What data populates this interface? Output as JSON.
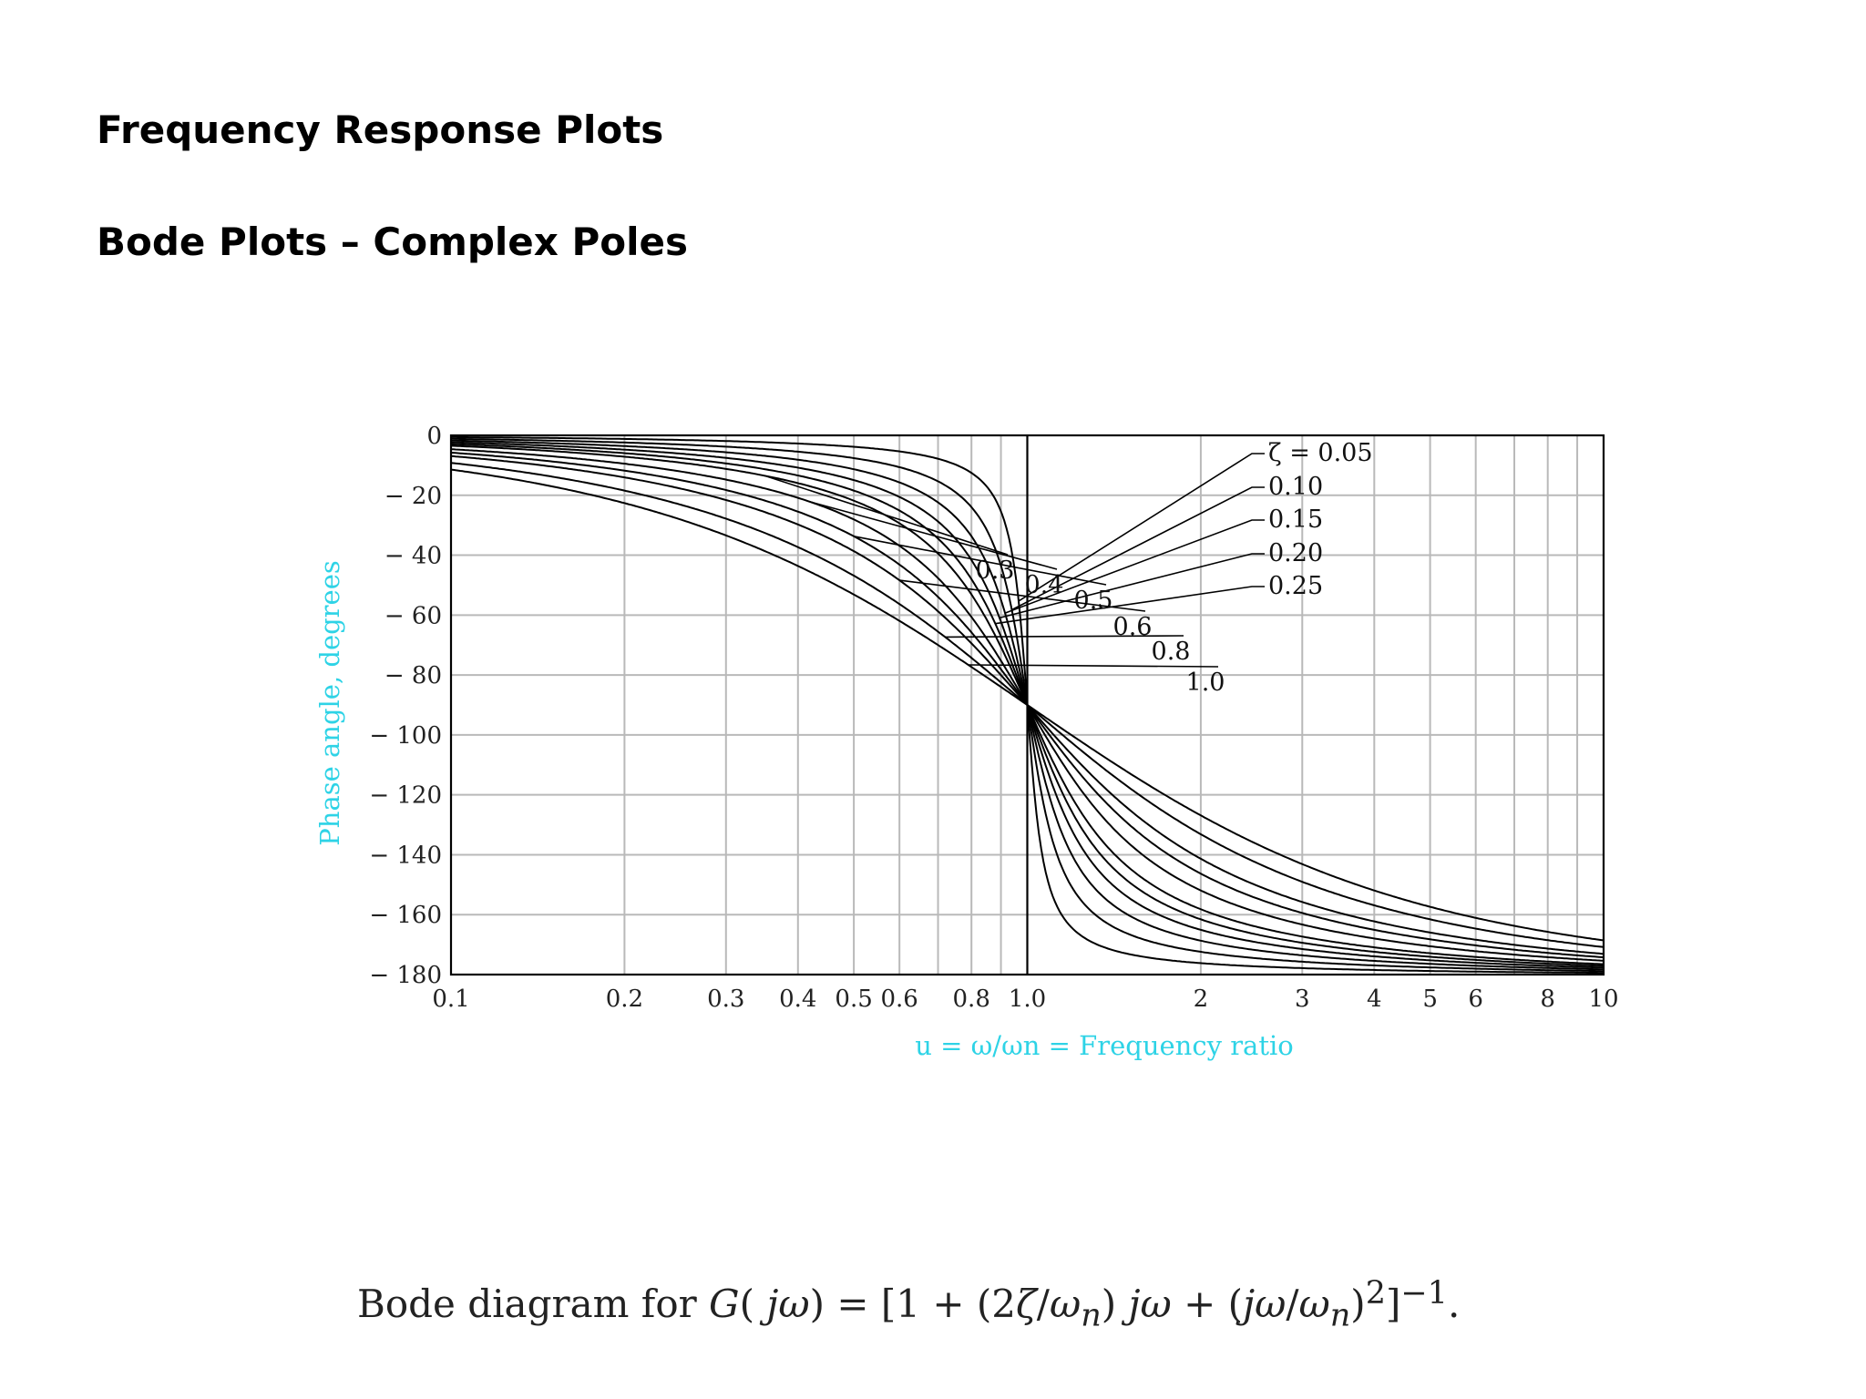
{
  "headings": {
    "title": "Frequency Response Plots",
    "subtitle": "Bode Plots – Complex Poles"
  },
  "colors": {
    "axis_label": "#2ed3e6",
    "grid": "#b9b9b9",
    "curves": "#000000"
  },
  "chart_data": {
    "type": "line",
    "x_scale": "log",
    "xlim": [
      0.1,
      10
    ],
    "ylim": [
      -180,
      0
    ],
    "grid": true,
    "xlabel": "u = ω/ωn = Frequency ratio",
    "ylabel": "Phase angle, degrees",
    "x_ticks": [
      {
        "value": 0.1,
        "label": "0.1"
      },
      {
        "value": 0.2,
        "label": "0.2"
      },
      {
        "value": 0.3,
        "label": "0.3"
      },
      {
        "value": 0.4,
        "label": "0.4"
      },
      {
        "value": 0.5,
        "label": "0.5"
      },
      {
        "value": 0.6,
        "label": "0.6"
      },
      {
        "value": 0.8,
        "label": "0.8"
      },
      {
        "value": 1.0,
        "label": "1.0"
      },
      {
        "value": 2,
        "label": "2"
      },
      {
        "value": 3,
        "label": "3"
      },
      {
        "value": 4,
        "label": "4"
      },
      {
        "value": 5,
        "label": "5"
      },
      {
        "value": 6,
        "label": "6"
      },
      {
        "value": 8,
        "label": "8"
      },
      {
        "value": 10,
        "label": "10"
      }
    ],
    "x_gridlines": [
      0.1,
      0.2,
      0.3,
      0.4,
      0.5,
      0.6,
      0.7,
      0.8,
      0.9,
      1,
      2,
      3,
      4,
      5,
      6,
      7,
      8,
      9,
      10
    ],
    "y_ticks": [
      {
        "value": 0,
        "label": "0"
      },
      {
        "value": -20,
        "label": "− 20"
      },
      {
        "value": -40,
        "label": "− 40"
      },
      {
        "value": -60,
        "label": "− 60"
      },
      {
        "value": -80,
        "label": "− 80"
      },
      {
        "value": -100,
        "label": "− 100"
      },
      {
        "value": -120,
        "label": "− 120"
      },
      {
        "value": -140,
        "label": "− 140"
      },
      {
        "value": -160,
        "label": "− 160"
      },
      {
        "value": -180,
        "label": "− 180"
      }
    ],
    "series": [
      {
        "zeta": 0.05,
        "label": "ζ = 0.05"
      },
      {
        "zeta": 0.1,
        "label": "0.10"
      },
      {
        "zeta": 0.15,
        "label": "0.15"
      },
      {
        "zeta": 0.2,
        "label": "0.20"
      },
      {
        "zeta": 0.25,
        "label": "0.25"
      },
      {
        "zeta": 0.3,
        "label": "0.3"
      },
      {
        "zeta": 0.4,
        "label": "0.4"
      },
      {
        "zeta": 0.5,
        "label": "0.5"
      },
      {
        "zeta": 0.6,
        "label": "0.6"
      },
      {
        "zeta": 0.8,
        "label": "0.8"
      },
      {
        "zeta": 1.0,
        "label": "1.0"
      }
    ]
  },
  "caption": {
    "prefix": "Bode diagram for ",
    "g": "G",
    "arg_open": "( ",
    "jw1": "jω",
    "eq_open": ") = [1 + (2",
    "zeta": "ζ",
    "slash1": "/",
    "w1": "ω",
    "n1": "n",
    "close1": ") ",
    "jw2": "jω",
    "plus": " + (",
    "jw3": "jω",
    "slash2": "/",
    "w2": "ω",
    "n2": "n",
    "close2": ")",
    "sq": "2",
    "bracket": "]",
    "inv": "−1",
    "end": "."
  }
}
